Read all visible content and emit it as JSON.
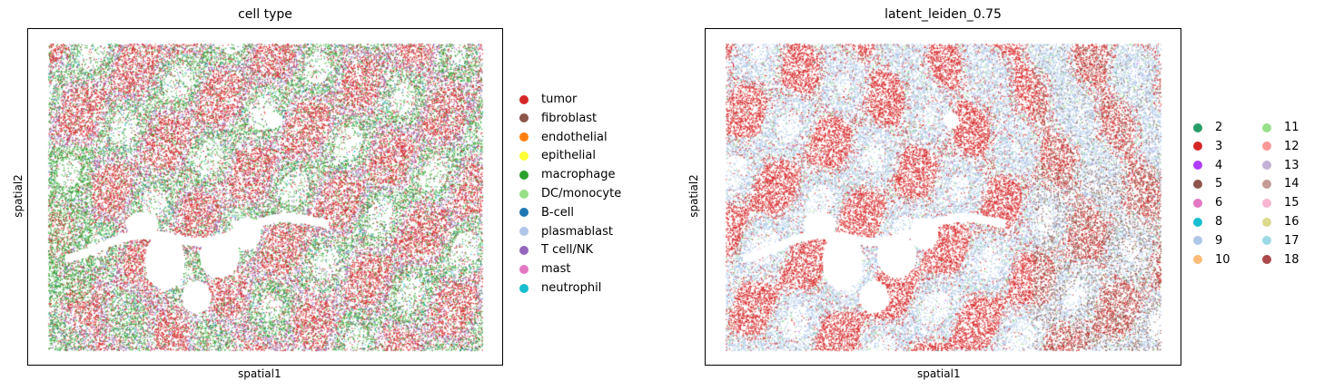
{
  "chart_data": [
    {
      "type": "scatter",
      "title": "cell type",
      "xlabel": "spatial1",
      "ylabel": "spatial2",
      "ticks": "none",
      "grid": false,
      "legend_position": "right",
      "legend_columns": 1,
      "series": [
        {
          "name": "tumor",
          "color": "#d62728",
          "share": 0.44
        },
        {
          "name": "fibroblast",
          "color": "#8c564b",
          "share": 0.05
        },
        {
          "name": "endothelial",
          "color": "#ff7f0e",
          "share": 0.01
        },
        {
          "name": "epithelial",
          "color": "#ffff33",
          "share": 0.005
        },
        {
          "name": "macrophage",
          "color": "#2ca02c",
          "share": 0.17
        },
        {
          "name": "DC/monocyte",
          "color": "#98df8a",
          "share": 0.03
        },
        {
          "name": "B-cell",
          "color": "#1f77b4",
          "share": 0.01
        },
        {
          "name": "plasmablast",
          "color": "#aec7e8",
          "share": 0.08
        },
        {
          "name": "T cell/NK",
          "color": "#9467bd",
          "share": 0.18
        },
        {
          "name": "mast",
          "color": "#e377c2",
          "share": 0.01
        },
        {
          "name": "neutrophil",
          "color": "#17becf",
          "share": 0.015
        }
      ]
    },
    {
      "type": "scatter",
      "title": "latent_leiden_0.75",
      "xlabel": "spatial1",
      "ylabel": "spatial2",
      "ticks": "none",
      "grid": false,
      "legend_position": "right",
      "legend_columns": 2,
      "series": [
        {
          "name": "2",
          "color": "#279e68",
          "share": 0.005
        },
        {
          "name": "3",
          "color": "#d62728",
          "share": 0.46
        },
        {
          "name": "4",
          "color": "#b13cff",
          "share": 0.003
        },
        {
          "name": "5",
          "color": "#8c564b",
          "share": 0.08
        },
        {
          "name": "6",
          "color": "#e377c2",
          "share": 0.003
        },
        {
          "name": "8",
          "color": "#17becf",
          "share": 0.003
        },
        {
          "name": "9",
          "color": "#aec7e8",
          "share": 0.39
        },
        {
          "name": "10",
          "color": "#ffbb78",
          "share": 0.004
        },
        {
          "name": "11",
          "color": "#98df8a",
          "share": 0.03
        },
        {
          "name": "12",
          "color": "#ff9896",
          "share": 0.004
        },
        {
          "name": "13",
          "color": "#c5b0d5",
          "share": 0.004
        },
        {
          "name": "14",
          "color": "#c49c94",
          "share": 0.006
        },
        {
          "name": "15",
          "color": "#f7b6d2",
          "share": 0.003
        },
        {
          "name": "16",
          "color": "#dbdb8d",
          "share": 0.004
        },
        {
          "name": "17",
          "color": "#9edae5",
          "share": 0.003
        },
        {
          "name": "18",
          "color": "#ad494a",
          "share": 0.004
        }
      ]
    }
  ]
}
